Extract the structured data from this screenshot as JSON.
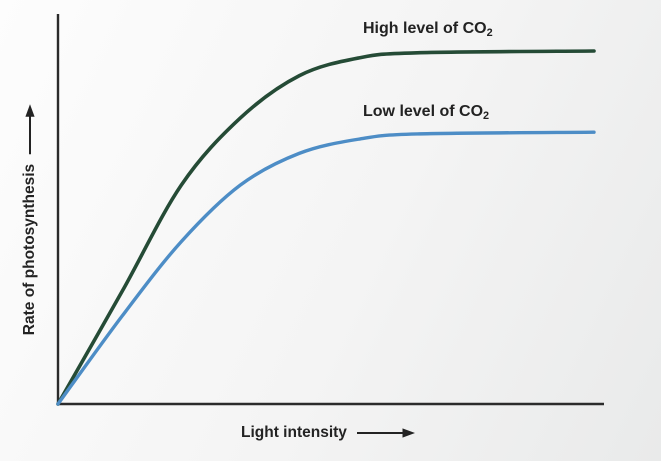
{
  "figure": {
    "background_top_left": "#fdfdfd",
    "background_bottom_right": "#e9eaea"
  },
  "axes": {
    "color": "#2b2b2b",
    "text_color": "#232323",
    "x_label": "Light intensity",
    "y_label": "Rate of photosynthesis"
  },
  "chart_data": {
    "type": "line",
    "title": "",
    "xlabel": "Light intensity",
    "ylabel": "Rate of photosynthesis",
    "x_axis": {
      "range": [
        0,
        100
      ],
      "unit": "arbitrary (no ticks shown)"
    },
    "y_axis": {
      "range": [
        0,
        100
      ],
      "unit": "arbitrary (no ticks shown)"
    },
    "grid": false,
    "legend_position": "labels above curve plateaus",
    "x": [
      0,
      12,
      23,
      34,
      45,
      56,
      67,
      100
    ],
    "series": [
      {
        "name": "High level of CO₂",
        "label_prefix": "High level of CO",
        "label_sub": "2",
        "color": "#254b36",
        "stroke_width": 3.6,
        "values": [
          0,
          32,
          62,
          81,
          93,
          98,
          99.5,
          100
        ]
      },
      {
        "name": "Low level of CO₂",
        "label_prefix": "Low level of CO",
        "label_sub": "2",
        "color": "#4d8dc6",
        "stroke_width": 3.4,
        "values": [
          0,
          25,
          46,
          62,
          71,
          75,
          76.5,
          77
        ]
      }
    ]
  }
}
